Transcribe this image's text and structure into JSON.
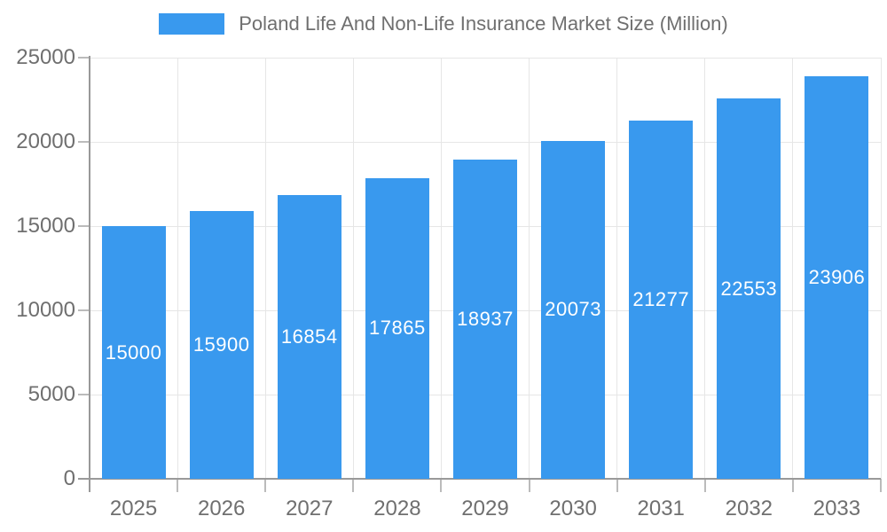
{
  "chart_data": {
    "type": "bar",
    "title": "Poland Life And Non-Life Insurance Market Size (Million)",
    "categories": [
      "2025",
      "2026",
      "2027",
      "2028",
      "2029",
      "2030",
      "2031",
      "2032",
      "2033"
    ],
    "values": [
      15000,
      15900,
      16854,
      17865,
      18937,
      20073,
      21277,
      22553,
      23906
    ],
    "ylim": [
      0,
      25000
    ],
    "yticks": [
      0,
      5000,
      10000,
      15000,
      20000,
      25000
    ],
    "xlabel": "",
    "ylabel": "",
    "grid": true,
    "legend_position": "top",
    "bar_color": "#3999EE",
    "value_label_color": "#FFFFFF",
    "axis_color": "#999999",
    "grid_color": "#E6E6E6",
    "tick_color": "#BBBBBB",
    "text_color": "#6F6F6F",
    "background_color": "#FFFFFF"
  }
}
